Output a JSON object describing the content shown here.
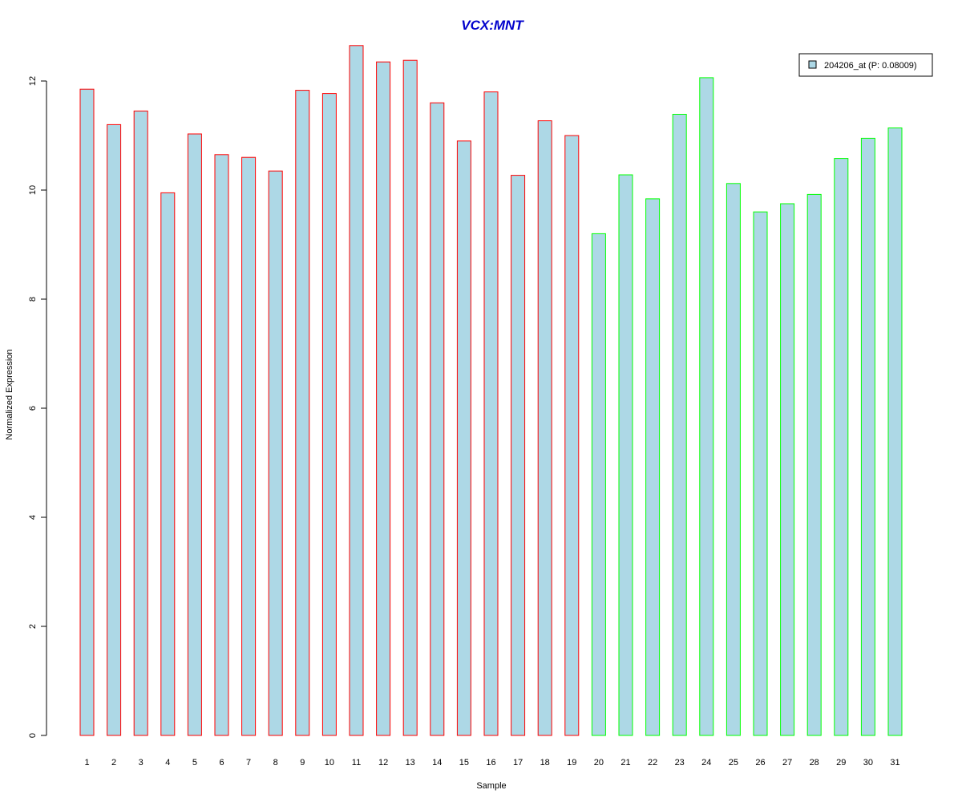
{
  "chart_data": {
    "type": "bar",
    "title": "VCX:MNT",
    "xlabel": "Sample",
    "ylabel": "Normalized Expression",
    "ylim": [
      0,
      12
    ],
    "yticks": [
      0,
      2,
      4,
      6,
      8,
      10,
      12
    ],
    "categories": [
      "1",
      "2",
      "3",
      "4",
      "5",
      "6",
      "7",
      "8",
      "9",
      "10",
      "11",
      "12",
      "13",
      "14",
      "15",
      "16",
      "17",
      "18",
      "19",
      "20",
      "21",
      "22",
      "23",
      "24",
      "25",
      "26",
      "27",
      "28",
      "29",
      "30",
      "31"
    ],
    "values": [
      11.85,
      11.2,
      11.45,
      9.95,
      11.03,
      10.65,
      10.6,
      10.35,
      11.83,
      11.77,
      12.65,
      12.35,
      12.38,
      11.6,
      10.9,
      11.8,
      10.27,
      11.27,
      11.0,
      9.2,
      10.28,
      9.84,
      11.39,
      12.06,
      10.12,
      9.6,
      9.75,
      9.92,
      10.58,
      10.95,
      11.14
    ],
    "groups": [
      "red",
      "red",
      "red",
      "red",
      "red",
      "red",
      "red",
      "red",
      "red",
      "red",
      "red",
      "red",
      "red",
      "red",
      "red",
      "red",
      "red",
      "red",
      "red",
      "green",
      "green",
      "green",
      "green",
      "green",
      "green",
      "green",
      "green",
      "green",
      "green",
      "green",
      "green"
    ],
    "colors": {
      "fill": "#add8e6",
      "red": "#ff0000",
      "green": "#00ff00",
      "title": "#0000cc"
    },
    "legend": {
      "label": "204206_at (P: 0.08009)",
      "placement": "top-right"
    },
    "grid": false
  }
}
